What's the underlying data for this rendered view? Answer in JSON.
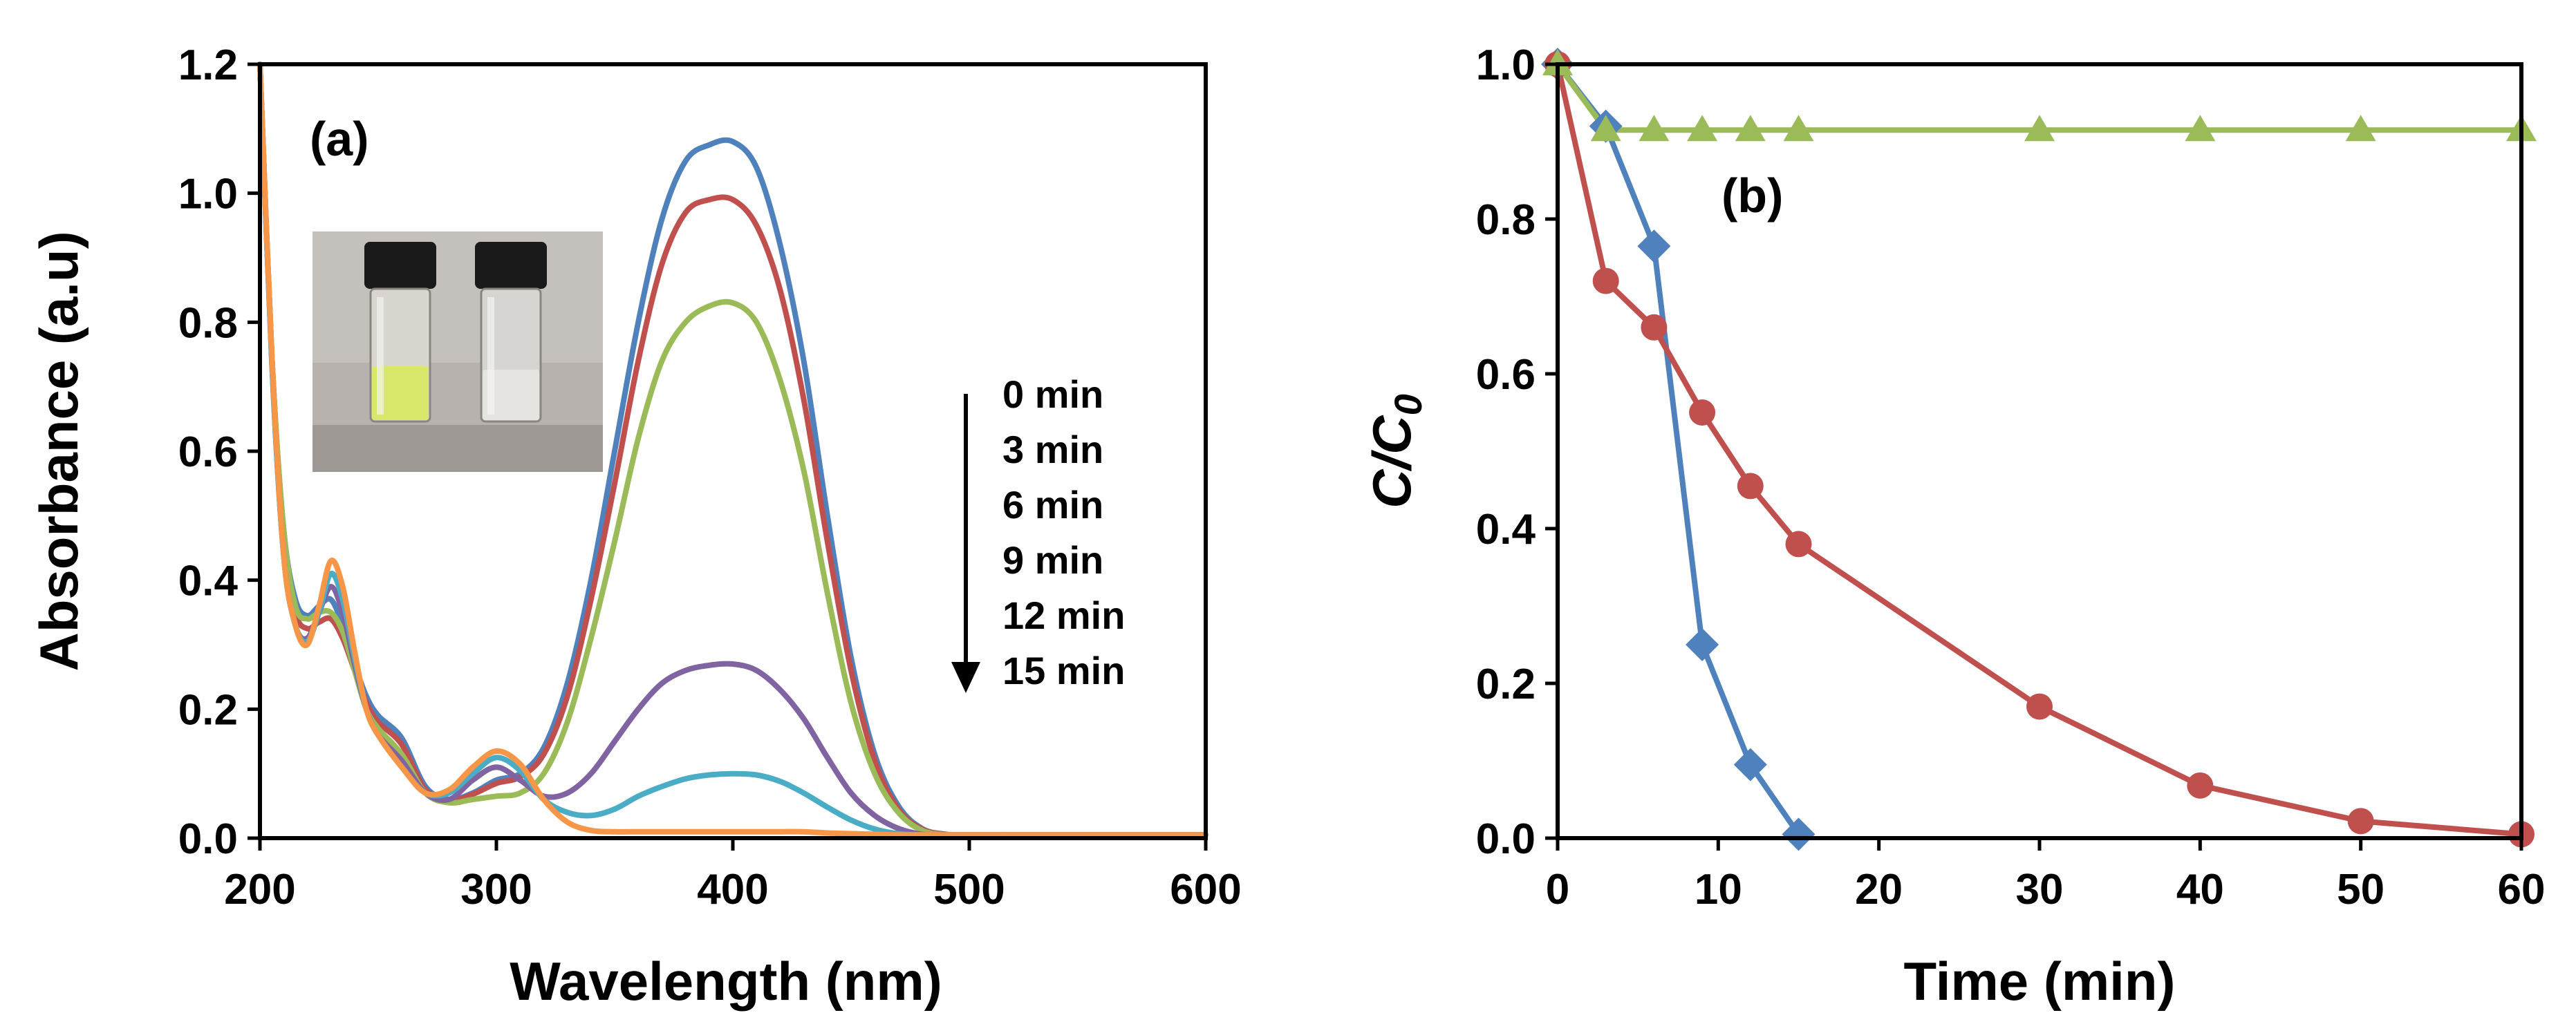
{
  "chart_data": [
    {
      "panel": "(a)",
      "type": "line",
      "xlabel": "Wavelength (nm)",
      "ylabel": "Absorbance (a.u)",
      "xlim": [
        200,
        600
      ],
      "ylim": [
        0,
        1.2
      ],
      "xticks": [
        "200",
        "300",
        "400",
        "500",
        "600"
      ],
      "yticks": [
        "0.0",
        "0.2",
        "0.4",
        "0.6",
        "0.8",
        "1.0",
        "1.2"
      ],
      "inset": "photo of two vials: yellow solution (left) and colourless solution (right)",
      "legend": [
        "0 min",
        "3 min",
        "6 min",
        "9 min",
        "12 min",
        "15 min"
      ],
      "series": [
        {
          "name": "0 min",
          "color": "#4f81bd",
          "x": [
            200,
            205,
            210,
            215,
            220,
            225,
            230,
            235,
            240,
            245,
            250,
            260,
            270,
            280,
            290,
            300,
            310,
            320,
            330,
            340,
            350,
            360,
            370,
            380,
            390,
            400,
            410,
            420,
            430,
            440,
            450,
            460,
            470,
            480,
            490,
            500,
            550,
            600
          ],
          "y": [
            1.2,
            0.75,
            0.48,
            0.37,
            0.345,
            0.36,
            0.37,
            0.33,
            0.27,
            0.22,
            0.19,
            0.155,
            0.08,
            0.06,
            0.07,
            0.09,
            0.1,
            0.14,
            0.24,
            0.4,
            0.6,
            0.8,
            0.96,
            1.05,
            1.075,
            1.08,
            1.04,
            0.92,
            0.74,
            0.5,
            0.28,
            0.13,
            0.05,
            0.015,
            0.006,
            0.005,
            0.005,
            0.005
          ]
        },
        {
          "name": "3 min",
          "color": "#c0504d",
          "x": [
            200,
            205,
            210,
            215,
            220,
            225,
            230,
            235,
            240,
            245,
            250,
            260,
            270,
            280,
            290,
            300,
            310,
            320,
            330,
            340,
            350,
            360,
            370,
            380,
            390,
            400,
            410,
            420,
            430,
            440,
            450,
            460,
            470,
            480,
            490,
            500,
            550,
            600
          ],
          "y": [
            1.2,
            0.75,
            0.47,
            0.35,
            0.325,
            0.335,
            0.34,
            0.31,
            0.26,
            0.21,
            0.18,
            0.145,
            0.075,
            0.058,
            0.068,
            0.085,
            0.095,
            0.13,
            0.22,
            0.37,
            0.55,
            0.74,
            0.89,
            0.97,
            0.99,
            0.99,
            0.95,
            0.85,
            0.68,
            0.46,
            0.26,
            0.12,
            0.045,
            0.014,
            0.006,
            0.005,
            0.005,
            0.005
          ]
        },
        {
          "name": "6 min",
          "color": "#9bbb59",
          "x": [
            200,
            205,
            210,
            215,
            220,
            225,
            230,
            235,
            240,
            245,
            250,
            260,
            270,
            280,
            290,
            300,
            310,
            320,
            330,
            340,
            350,
            360,
            370,
            380,
            390,
            400,
            410,
            420,
            430,
            440,
            450,
            460,
            470,
            480,
            490,
            500,
            550,
            600
          ],
          "y": [
            1.2,
            0.75,
            0.48,
            0.36,
            0.34,
            0.35,
            0.35,
            0.32,
            0.26,
            0.2,
            0.17,
            0.13,
            0.07,
            0.055,
            0.06,
            0.065,
            0.07,
            0.1,
            0.18,
            0.31,
            0.46,
            0.62,
            0.74,
            0.8,
            0.825,
            0.83,
            0.8,
            0.71,
            0.57,
            0.38,
            0.21,
            0.1,
            0.04,
            0.012,
            0.005,
            0.005,
            0.005,
            0.005
          ]
        },
        {
          "name": "9 min",
          "color": "#8064a2",
          "x": [
            200,
            205,
            210,
            215,
            220,
            225,
            230,
            235,
            240,
            245,
            250,
            260,
            270,
            280,
            290,
            300,
            310,
            320,
            330,
            340,
            350,
            360,
            370,
            380,
            390,
            400,
            410,
            420,
            430,
            440,
            450,
            460,
            470,
            480,
            490,
            500,
            550,
            600
          ],
          "y": [
            1.2,
            0.74,
            0.44,
            0.33,
            0.31,
            0.35,
            0.39,
            0.35,
            0.27,
            0.2,
            0.16,
            0.12,
            0.07,
            0.06,
            0.09,
            0.11,
            0.09,
            0.065,
            0.07,
            0.1,
            0.15,
            0.2,
            0.24,
            0.26,
            0.268,
            0.27,
            0.26,
            0.23,
            0.185,
            0.125,
            0.07,
            0.035,
            0.015,
            0.006,
            0.005,
            0.005,
            0.005,
            0.005
          ]
        },
        {
          "name": "12 min",
          "color": "#4bacc6",
          "x": [
            200,
            205,
            210,
            215,
            220,
            225,
            230,
            235,
            240,
            245,
            250,
            260,
            270,
            280,
            290,
            300,
            310,
            320,
            330,
            340,
            350,
            360,
            370,
            380,
            390,
            400,
            410,
            420,
            430,
            440,
            450,
            460,
            470,
            480,
            490,
            500,
            550,
            600
          ],
          "y": [
            1.2,
            0.74,
            0.44,
            0.33,
            0.305,
            0.35,
            0.41,
            0.37,
            0.28,
            0.2,
            0.16,
            0.11,
            0.07,
            0.07,
            0.1,
            0.125,
            0.105,
            0.06,
            0.04,
            0.035,
            0.045,
            0.065,
            0.08,
            0.092,
            0.098,
            0.1,
            0.098,
            0.088,
            0.07,
            0.048,
            0.028,
            0.014,
            0.007,
            0.005,
            0.005,
            0.005,
            0.005,
            0.005
          ]
        },
        {
          "name": "15 min",
          "color": "#f79646",
          "x": [
            200,
            205,
            210,
            215,
            220,
            225,
            230,
            235,
            240,
            245,
            250,
            260,
            270,
            280,
            290,
            300,
            310,
            320,
            330,
            340,
            350,
            360,
            370,
            380,
            390,
            400,
            410,
            420,
            430,
            440,
            450,
            460,
            470,
            480,
            490,
            500,
            550,
            600
          ],
          "y": [
            1.2,
            0.75,
            0.44,
            0.33,
            0.3,
            0.36,
            0.43,
            0.39,
            0.29,
            0.2,
            0.16,
            0.11,
            0.07,
            0.075,
            0.11,
            0.135,
            0.115,
            0.06,
            0.025,
            0.012,
            0.01,
            0.01,
            0.01,
            0.01,
            0.01,
            0.01,
            0.01,
            0.01,
            0.01,
            0.008,
            0.007,
            0.006,
            0.005,
            0.005,
            0.005,
            0.005,
            0.005,
            0.005
          ]
        }
      ]
    },
    {
      "panel": "(b)",
      "type": "line",
      "xlabel": "Time (min)",
      "ylabel": "C/C",
      "ylabel_sub": "0",
      "xlim": [
        0,
        60
      ],
      "ylim": [
        0,
        1.0
      ],
      "xticks": [
        "0",
        "10",
        "20",
        "30",
        "40",
        "50",
        "60"
      ],
      "yticks": [
        "0.0",
        "0.2",
        "0.4",
        "0.6",
        "0.8",
        "1.0"
      ],
      "series": [
        {
          "name": "diamond series",
          "color": "#4f81bd",
          "marker": "diamond",
          "x": [
            0,
            3,
            6,
            9,
            12,
            15
          ],
          "y": [
            1.0,
            0.92,
            0.765,
            0.25,
            0.095,
            0.005
          ]
        },
        {
          "name": "circle series",
          "color": "#c0504d",
          "marker": "circle",
          "x": [
            0,
            3,
            6,
            9,
            12,
            15,
            30,
            40,
            50,
            60
          ],
          "y": [
            1.0,
            0.72,
            0.66,
            0.55,
            0.455,
            0.38,
            0.17,
            0.068,
            0.022,
            0.005
          ]
        },
        {
          "name": "triangle series",
          "color": "#9bbb59",
          "marker": "triangle",
          "x": [
            0,
            3,
            6,
            9,
            12,
            15,
            30,
            40,
            50,
            60
          ],
          "y": [
            1.0,
            0.915,
            0.915,
            0.915,
            0.915,
            0.915,
            0.915,
            0.915,
            0.915,
            0.915
          ]
        }
      ]
    }
  ]
}
